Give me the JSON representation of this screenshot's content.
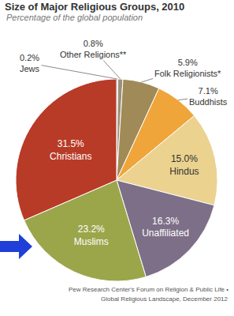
{
  "chart_data": {
    "type": "pie",
    "title": "Size of Major Religious Groups, 2010",
    "subtitle": "Percentage of the global population",
    "categories": [
      "Jews",
      "Other Religions**",
      "Folk Religionists*",
      "Buddhists",
      "Hindus",
      "Unaffiliated",
      "Muslims",
      "Christians"
    ],
    "values": [
      0.2,
      0.8,
      5.9,
      7.1,
      15.0,
      16.3,
      23.2,
      31.5
    ],
    "value_labels": [
      "0.2%",
      "0.8%",
      "5.9%",
      "7.1%",
      "15.0%",
      "16.3%",
      "23.2%",
      "31.5%"
    ],
    "colors": [
      "#5b7fa8",
      "#9a917a",
      "#a08a58",
      "#f0a53a",
      "#ebd28f",
      "#7d6f88",
      "#9ba64a",
      "#b83b27"
    ],
    "data_labels": true,
    "annotations": [
      "Pew Research Center's Forum on Religion & Public Life •",
      "Global Religious Landscape, December 2012"
    ]
  }
}
